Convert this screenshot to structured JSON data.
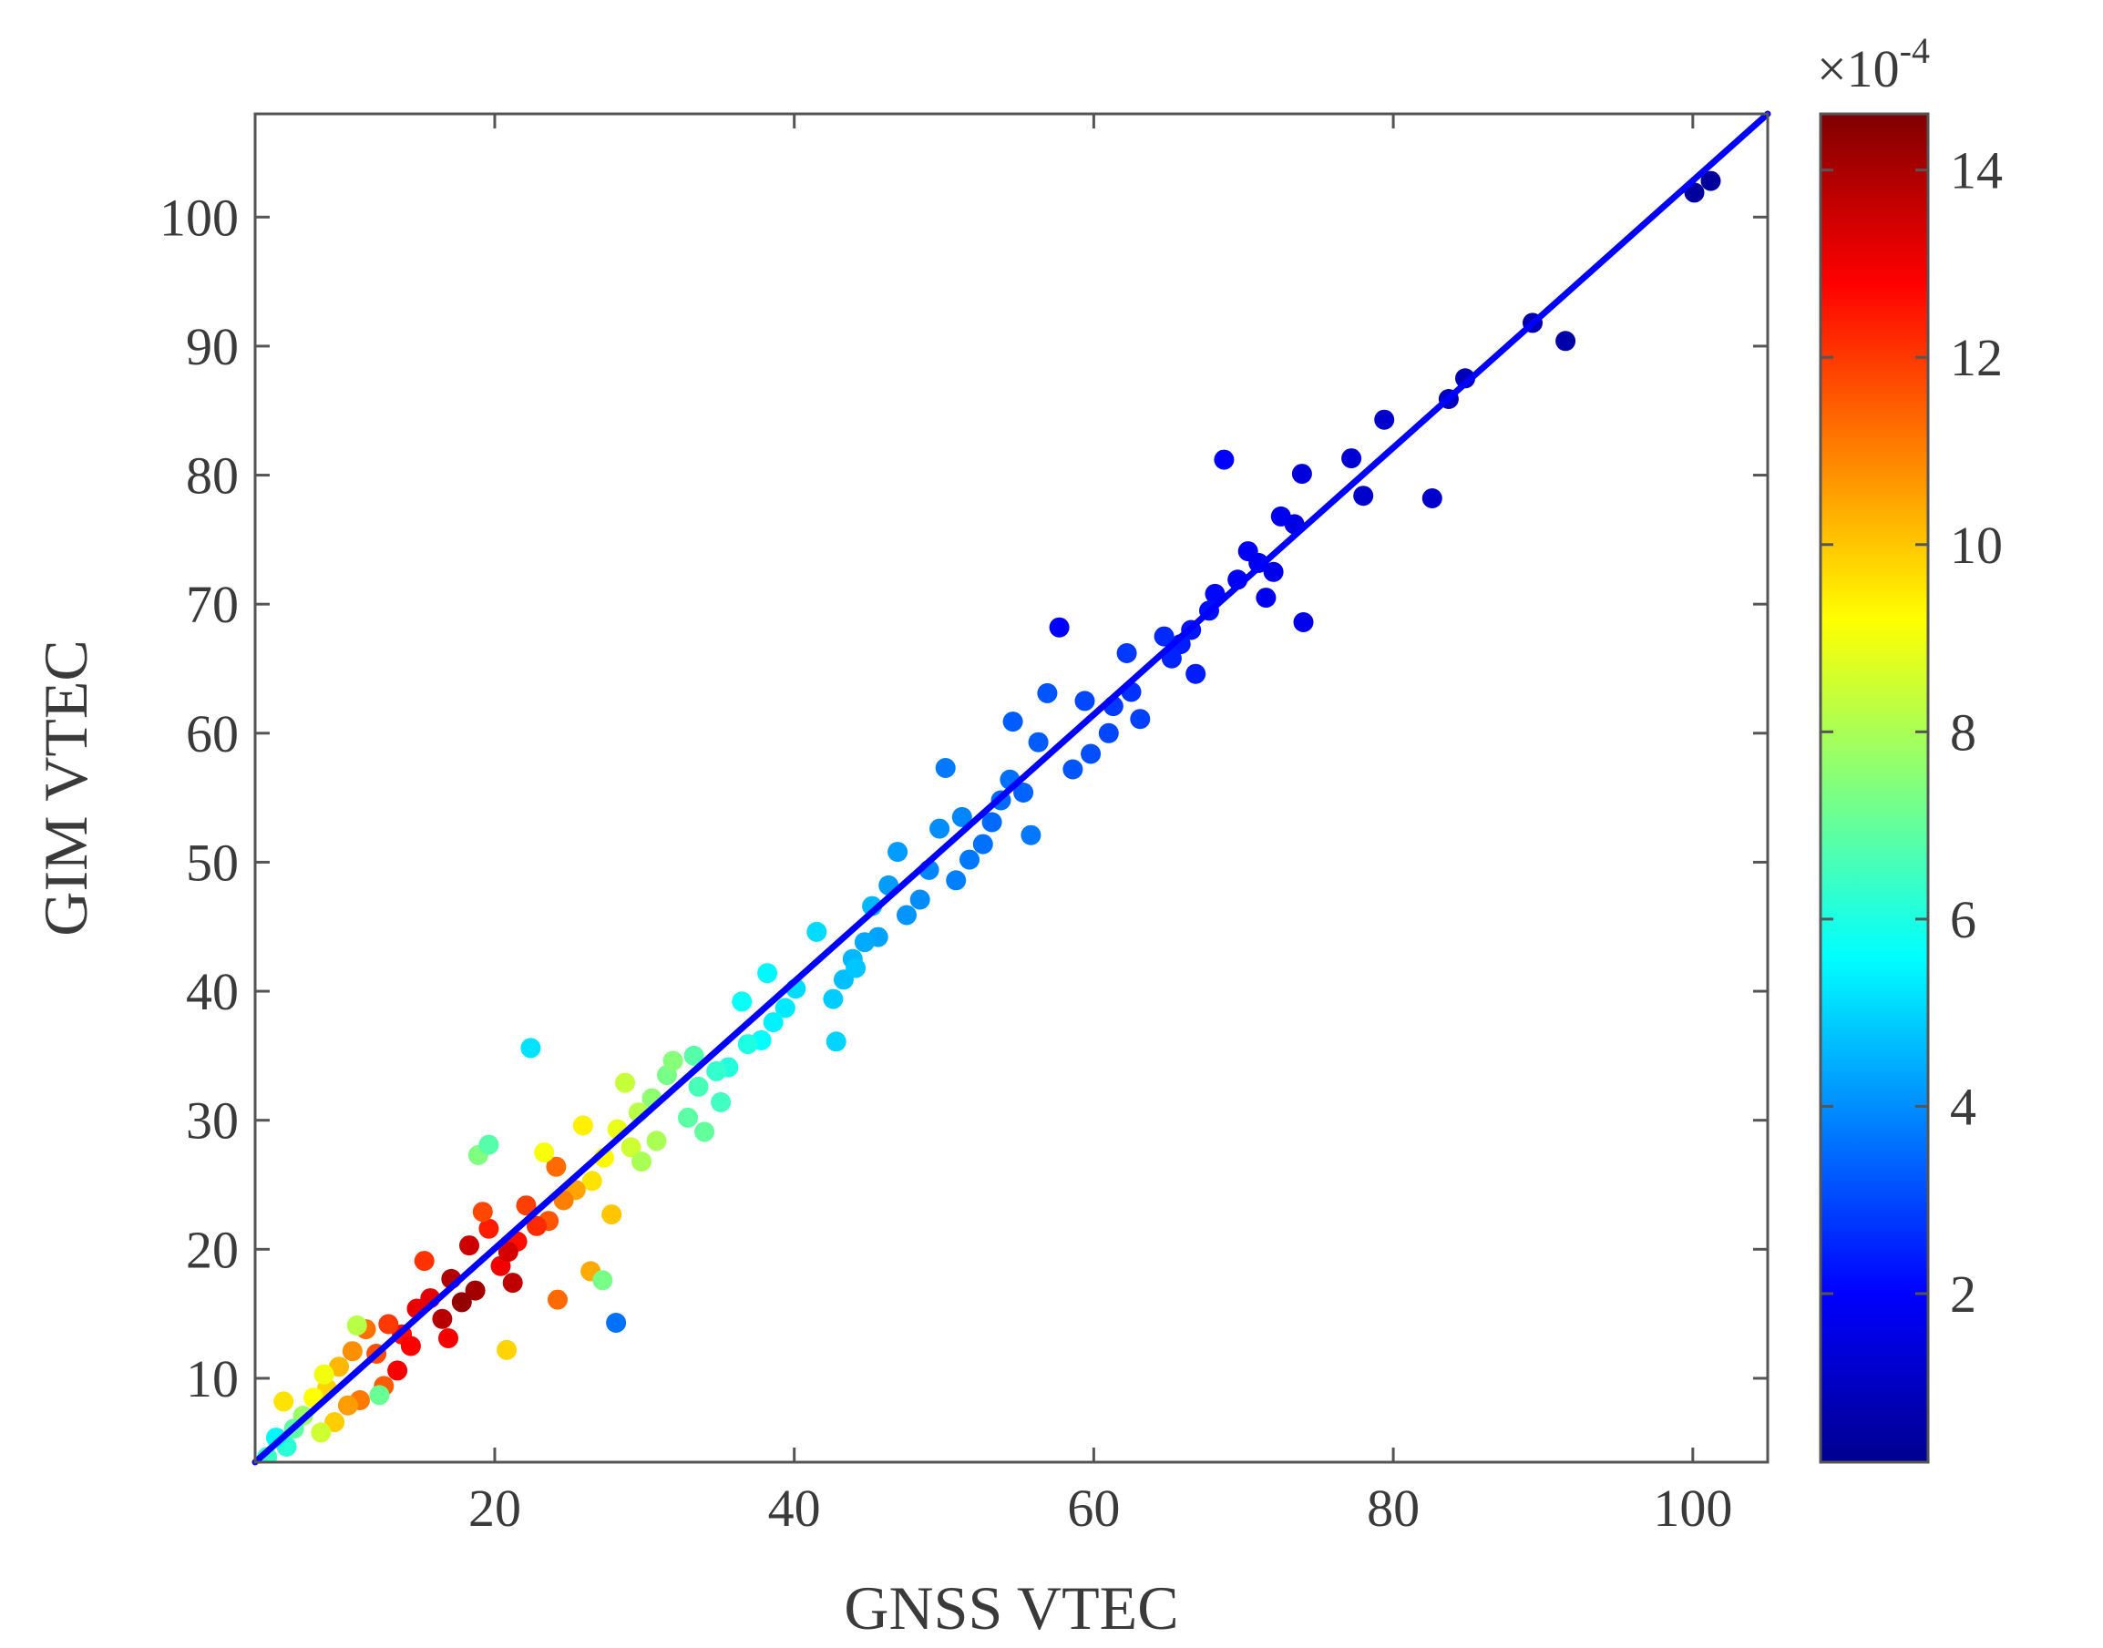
{
  "chart_data": {
    "type": "scatter",
    "title": "",
    "xlabel": "GNSS VTEC",
    "ylabel": "GIM VTEC",
    "xlim": [
      4,
      105
    ],
    "ylim": [
      3.5,
      108
    ],
    "xticks": [
      "20",
      "40",
      "60",
      "80",
      "100"
    ],
    "yticks": [
      "10",
      "20",
      "30",
      "40",
      "50",
      "60",
      "70",
      "80",
      "90",
      "100"
    ],
    "grid": false,
    "legend": "none",
    "fit_line": {
      "x": [
        4,
        105
      ],
      "y": [
        3.5,
        108
      ],
      "color": "#0000ff"
    },
    "colorbar": {
      "label": "",
      "multiplier": "×10",
      "multiplier_exponent": "-4",
      "range": [
        0.2,
        14.6
      ],
      "ticks": [
        "2",
        "4",
        "6",
        "8",
        "10",
        "12",
        "14"
      ],
      "colormap": "jet"
    },
    "series": [
      {
        "x": [
          101.2,
          100.1,
          91.5,
          89.3,
          84.8,
          83.7,
          79.4,
          78.0,
          77.2,
          82.6,
          73.9,
          73.4,
          72.0,
          71.5,
          70.3,
          69.6,
          72.5,
          74.0,
          71.0,
          68.7,
          68.1,
          67.7,
          66.5,
          65.8,
          65.2,
          66.8,
          64.7,
          62.5,
          61.3,
          62.2,
          63.1,
          61.0,
          59.8,
          59.4,
          58.6,
          57.7,
          56.3,
          56.9,
          55.3,
          54.6,
          53.8,
          53.2,
          54.4,
          55.8,
          52.6,
          51.7,
          50.8,
          51.2,
          50.1,
          49.0,
          48.4,
          49.7,
          47.5,
          46.3,
          45.6,
          46.9,
          44.7,
          43.9,
          43.3,
          42.6,
          44.1,
          45.2,
          42.8,
          40.1,
          39.4,
          41.5,
          38.6,
          37.8,
          38.2,
          36.5,
          35.6,
          34.8,
          36.9,
          35.1,
          33.6,
          32.9,
          34.0,
          33.3,
          31.5,
          30.5,
          30.8,
          31.9,
          29.6,
          29.1,
          28.7,
          28.2,
          29.8,
          27.3,
          26.5,
          27.8,
          25.4,
          24.6,
          25.9,
          23.6,
          24.1,
          22.8,
          22.1,
          23.3,
          21.5,
          20.4,
          19.6,
          20.9,
          21.2,
          18.7,
          19.2,
          17.8,
          18.3,
          17.1,
          16.5,
          15.7,
          16.9,
          14.8,
          15.3,
          13.8,
          14.4,
          12.9,
          13.5,
          12.1,
          11.4,
          12.6,
          10.5,
          11.0,
          9.6,
          10.2,
          8.8,
          9.3,
          7.9,
          8.4,
          7.2,
          6.6,
          6.1,
          5.4,
          4.8,
          5.9,
          8.6,
          10.8,
          12.3,
          18.9,
          20.8,
          22.4,
          24.2,
          26.4,
          28.1,
          19.6,
          27.2
        ],
        "y": [
          102.8,
          101.9,
          90.4,
          91.8,
          87.5,
          85.9,
          84.3,
          78.4,
          81.3,
          78.2,
          80.1,
          76.2,
          72.5,
          70.5,
          74.1,
          71.9,
          76.8,
          68.6,
          73.2,
          81.2,
          70.8,
          69.5,
          68.0,
          66.9,
          65.8,
          64.6,
          67.5,
          63.2,
          62.1,
          66.2,
          61.1,
          60.0,
          58.4,
          62.5,
          57.2,
          68.2,
          59.3,
          63.1,
          55.4,
          60.9,
          54.8,
          53.1,
          56.4,
          52.1,
          51.4,
          50.2,
          48.6,
          53.5,
          57.3,
          49.4,
          47.1,
          52.6,
          45.9,
          48.2,
          44.2,
          50.8,
          43.8,
          42.5,
          40.9,
          39.4,
          41.8,
          46.6,
          36.1,
          40.2,
          38.7,
          44.6,
          37.6,
          36.2,
          41.4,
          39.2,
          34.1,
          33.8,
          35.9,
          31.4,
          32.6,
          30.2,
          29.1,
          35.0,
          33.5,
          31.7,
          28.4,
          34.6,
          30.6,
          27.9,
          32.9,
          29.3,
          26.8,
          27.1,
          25.3,
          22.7,
          24.6,
          23.8,
          29.6,
          22.2,
          26.4,
          21.8,
          23.4,
          27.5,
          20.6,
          18.7,
          21.6,
          19.8,
          17.4,
          16.8,
          22.9,
          15.9,
          20.3,
          17.7,
          14.6,
          16.2,
          13.1,
          15.4,
          19.1,
          13.4,
          12.5,
          14.2,
          10.6,
          11.9,
          13.8,
          9.4,
          12.1,
          8.3,
          10.9,
          7.9,
          9.2,
          6.6,
          8.5,
          5.8,
          7.1,
          6.1,
          4.7,
          5.4,
          3.9,
          8.2,
          10.3,
          14.1,
          8.7,
          27.3,
          12.2,
          35.6,
          16.1,
          18.3,
          14.3,
          28.1,
          17.6
        ],
        "c": [
          0.6,
          0.6,
          0.8,
          0.9,
          1.0,
          1.1,
          1.3,
          1.3,
          1.4,
          1.3,
          1.5,
          1.6,
          1.7,
          1.8,
          1.9,
          1.9,
          1.8,
          1.7,
          1.8,
          2.0,
          2.1,
          2.2,
          2.3,
          2.4,
          2.5,
          2.4,
          2.6,
          2.7,
          2.8,
          2.8,
          2.9,
          3.0,
          3.1,
          3.0,
          3.2,
          2.0,
          3.3,
          3.2,
          3.4,
          3.3,
          3.5,
          3.5,
          3.6,
          3.7,
          3.6,
          3.7,
          3.8,
          3.9,
          3.7,
          3.9,
          4.0,
          4.0,
          4.1,
          4.2,
          4.3,
          4.2,
          4.4,
          4.6,
          4.7,
          4.9,
          4.8,
          4.6,
          5.0,
          5.1,
          5.3,
          5.1,
          5.4,
          5.6,
          5.5,
          5.7,
          6.1,
          6.3,
          6.0,
          6.5,
          6.6,
          6.9,
          7.0,
          6.8,
          7.3,
          7.6,
          8.0,
          7.5,
          8.2,
          8.5,
          8.4,
          8.9,
          8.0,
          9.3,
          9.6,
          10.0,
          10.5,
          11.0,
          9.4,
          11.6,
          11.3,
          12.2,
          11.9,
          9.1,
          12.6,
          13.0,
          12.4,
          13.4,
          13.7,
          14.1,
          11.8,
          14.3,
          13.5,
          13.9,
          13.8,
          13.2,
          12.9,
          13.1,
          12.1,
          12.6,
          12.8,
          12.0,
          12.9,
          11.7,
          11.2,
          11.5,
          10.8,
          11.1,
          10.2,
          10.6,
          9.8,
          9.9,
          9.2,
          8.5,
          7.8,
          6.9,
          6.2,
          5.5,
          6.4,
          9.6,
          9.0,
          8.2,
          7.1,
          7.4,
          9.8,
          5.2,
          11.3,
          10.4,
          3.6,
          6.8,
          7.3
        ]
      }
    ]
  }
}
